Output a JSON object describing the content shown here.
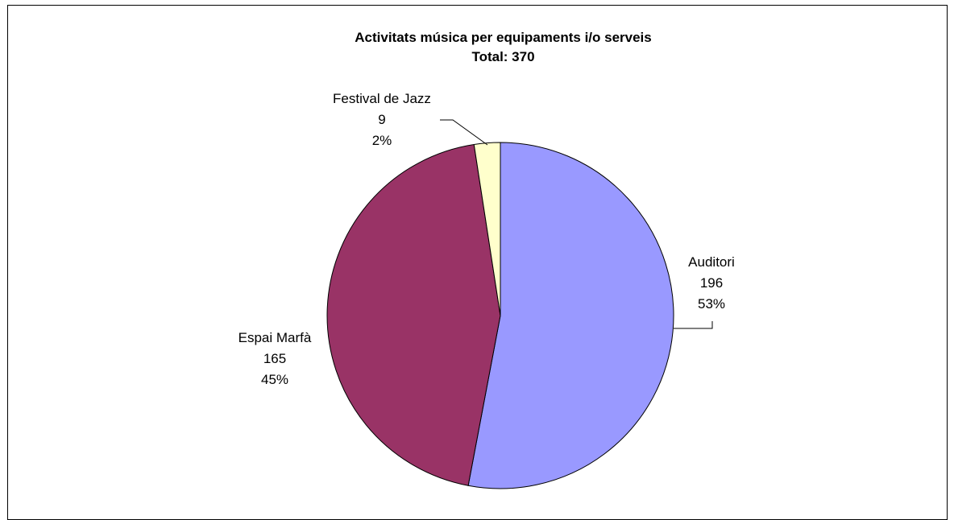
{
  "chart_data": {
    "type": "pie",
    "title": "Activitats música per equipaments i/o serveis",
    "subtitle": "Total: 370",
    "slices": [
      {
        "label": "Auditori",
        "value": 196,
        "percent": "53%",
        "color": "#9999ff"
      },
      {
        "label": "Espai Marfà",
        "value": 165,
        "percent": "45%",
        "color": "#993366"
      },
      {
        "label": "Festival de Jazz",
        "value": 9,
        "percent": "2%",
        "color": "#ffffcc"
      }
    ],
    "total": 370,
    "legend": "none"
  }
}
